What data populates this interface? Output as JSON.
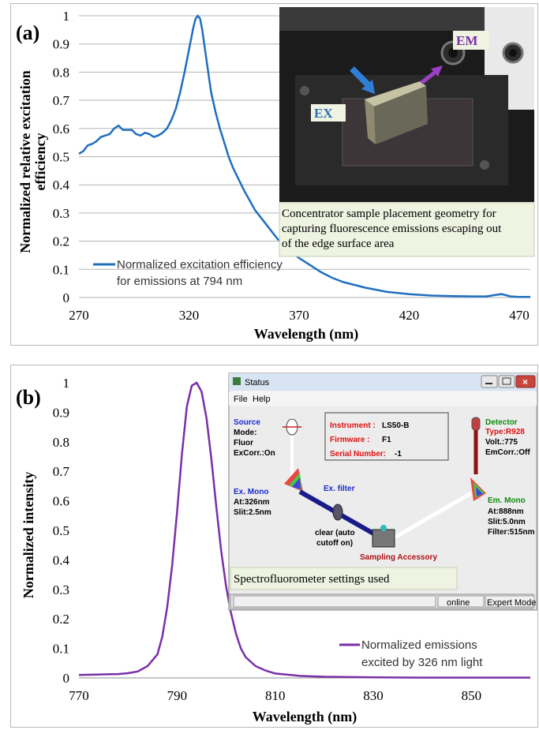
{
  "chart_data": [
    {
      "type": "line",
      "panel_label": "(a)",
      "xlabel": "Wavelength  (nm)",
      "ylabel_line1": "Normalized  relative  excitation",
      "ylabel_line2": "efficiency",
      "xlim": [
        270,
        475
      ],
      "ylim": [
        0,
        1
      ],
      "xticks": [
        270,
        320,
        370,
        420,
        470
      ],
      "yticks": [
        0,
        0.1,
        0.2,
        0.3,
        0.4,
        0.5,
        0.6,
        0.7,
        0.8,
        0.9,
        1
      ],
      "grid": "horizontal",
      "legend_position": "bottom-left",
      "series": [
        {
          "name": "Normalized excitation efficiency for emissions at 794 nm",
          "legend_line1": "Normalized excitation efficiency",
          "legend_line2": "for emissions at 794 nm",
          "color": "#1f6fbf",
          "x": [
            270,
            272,
            274,
            276,
            278,
            280,
            282,
            284,
            286,
            288,
            290,
            292,
            294,
            296,
            298,
            300,
            302,
            304,
            306,
            308,
            310,
            312,
            314,
            316,
            318,
            320,
            322,
            323,
            324,
            325,
            326,
            328,
            330,
            332,
            334,
            336,
            338,
            340,
            345,
            350,
            355,
            360,
            365,
            370,
            375,
            380,
            385,
            390,
            395,
            400,
            410,
            420,
            430,
            440,
            450,
            455,
            460,
            462,
            464,
            466,
            470,
            475
          ],
          "y": [
            0.51,
            0.52,
            0.54,
            0.545,
            0.555,
            0.57,
            0.575,
            0.58,
            0.6,
            0.61,
            0.595,
            0.595,
            0.595,
            0.58,
            0.575,
            0.585,
            0.58,
            0.57,
            0.575,
            0.585,
            0.6,
            0.63,
            0.67,
            0.73,
            0.8,
            0.88,
            0.96,
            0.99,
            1.0,
            0.99,
            0.95,
            0.84,
            0.73,
            0.66,
            0.6,
            0.55,
            0.5,
            0.46,
            0.38,
            0.31,
            0.26,
            0.21,
            0.17,
            0.14,
            0.115,
            0.09,
            0.07,
            0.055,
            0.045,
            0.035,
            0.02,
            0.012,
            0.007,
            0.005,
            0.004,
            0.004,
            0.01,
            0.012,
            0.008,
            0.004,
            0.002,
            0.002
          ]
        }
      ],
      "inset_photo": {
        "labels": {
          "ex": "EX",
          "em": "EM"
        },
        "caption_line1": "Concentrator sample placement geometry for",
        "caption_line2": "capturing fluorescence emissions escaping out",
        "caption_line3": "of the edge surface area"
      }
    },
    {
      "type": "line",
      "panel_label": "(b)",
      "xlabel": "Wavelength (nm)",
      "ylabel": "Normalized intensity",
      "xlim": [
        770,
        862
      ],
      "ylim": [
        0,
        1
      ],
      "xticks": [
        770,
        790,
        810,
        830,
        850
      ],
      "yticks": [
        0,
        0.1,
        0.2,
        0.3,
        0.4,
        0.5,
        0.6,
        0.7,
        0.8,
        0.9,
        1
      ],
      "grid": "none",
      "legend_position": "bottom-right",
      "series": [
        {
          "name": "Normalized emissions excited by 326 nm light",
          "legend_line1": "Normalized emissions",
          "legend_line2": "excited by 326 nm light",
          "color": "#7b2fa8",
          "x": [
            770,
            775,
            778,
            780,
            782,
            784,
            786,
            787,
            788,
            789,
            790,
            791,
            792,
            793,
            794,
            795,
            796,
            797,
            798,
            799,
            800,
            801,
            802,
            803,
            804,
            806,
            808,
            810,
            815,
            820,
            830,
            840,
            850,
            862
          ],
          "y": [
            0.01,
            0.012,
            0.013,
            0.016,
            0.022,
            0.04,
            0.08,
            0.14,
            0.24,
            0.38,
            0.56,
            0.76,
            0.92,
            0.99,
            1.0,
            0.97,
            0.88,
            0.74,
            0.58,
            0.43,
            0.31,
            0.22,
            0.15,
            0.1,
            0.07,
            0.04,
            0.025,
            0.015,
            0.007,
            0.004,
            0.002,
            0.001,
            0.001,
            0.001
          ]
        }
      ],
      "status_window": {
        "title": "Status",
        "menu_file": "File",
        "menu_help": "Help",
        "source_title": "Source",
        "source_mode": "Mode:",
        "source_fluor": "Fluor",
        "source_excorr": "ExCorr.:On",
        "instrument_label": "Instrument :",
        "instrument_value": "LS50-B",
        "firmware_label": "Firmware :",
        "firmware_value": "F1",
        "serial_label": "Serial Number:",
        "serial_value": "-1",
        "detector_title": "Detector",
        "detector_type": "Type:R928",
        "detector_volt": "Volt.:775",
        "detector_emcorr": "EmCorr.:Off",
        "exmono_title": "Ex. Mono",
        "exmono_at": "At:326nm",
        "exmono_slit": "Slit:2.5nm",
        "exfilter": "Ex. filter",
        "emmono_title": "Em. Mono",
        "emmono_at": "At:888nm",
        "emmono_slit": "Slit:5.0nm",
        "emmono_filter": "Filter:515nm",
        "clear_line1": "clear (auto",
        "clear_line2": "cutoff on)",
        "sampling": "Sampling Accessory",
        "status_online": "online",
        "status_mode": "Expert Mode",
        "caption": "Spectrofluorometer settings used"
      }
    }
  ]
}
